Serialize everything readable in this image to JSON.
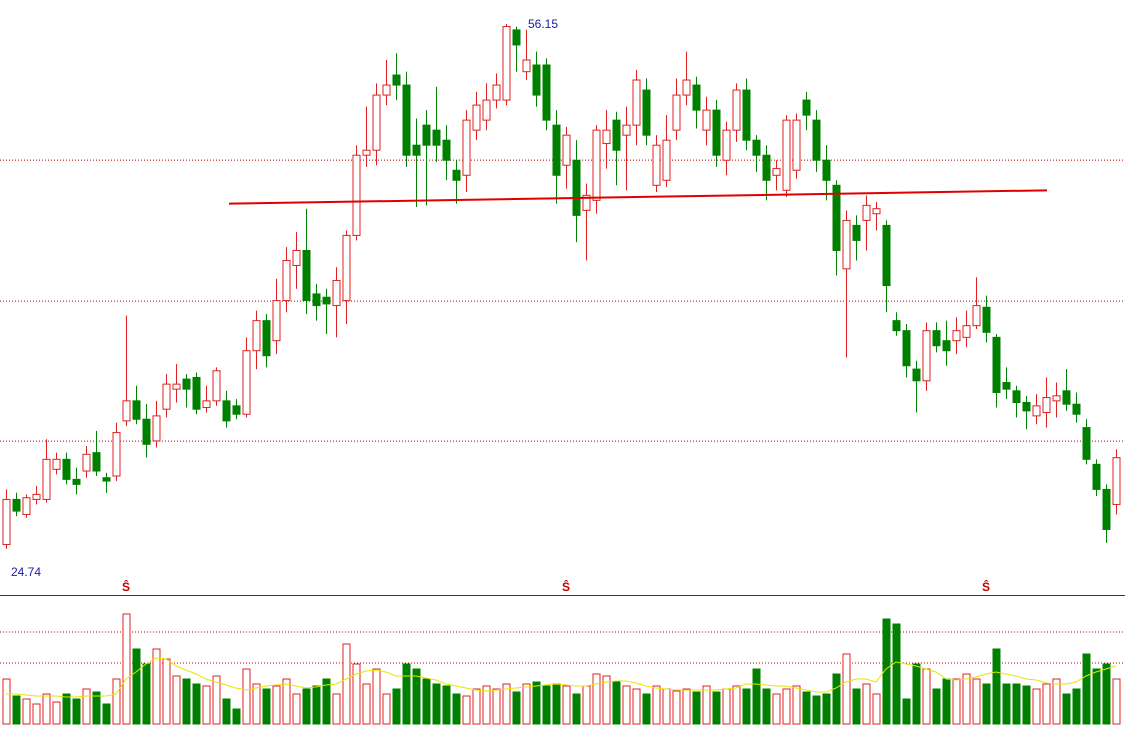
{
  "chart_data": {
    "type": "candlestick",
    "up_color": "#e02020",
    "down_color": "#008000",
    "ma_color": "#e6e600",
    "grid_color": "#c00000",
    "ylim": [
      21.98,
      57.59
    ],
    "vlim": [
      0,
      128
    ],
    "grid_lines": [
      48.01,
      39.57,
      31.19
    ],
    "volume_grid_lines": [
      92,
      61
    ],
    "open": [
      25.0,
      27.7,
      26.8,
      27.7,
      27.7,
      29.5,
      30.1,
      28.9,
      29.4,
      30.5,
      29.0,
      29.1,
      32.4,
      33.6,
      32.5,
      31.2,
      33.1,
      34.3,
      34.9,
      35.0,
      33.2,
      33.6,
      33.6,
      33.3,
      32.8,
      36.6,
      38.4,
      37.2,
      39.6,
      41.7,
      42.6,
      40.0,
      39.8,
      39.3,
      39.6,
      43.5,
      48.3,
      48.6,
      51.9,
      53.1,
      52.5,
      48.9,
      50.1,
      49.8,
      49.2,
      47.4,
      47.1,
      49.8,
      50.4,
      51.6,
      51.6,
      55.8,
      53.3,
      53.7,
      53.7,
      50.1,
      47.7,
      48.0,
      45.0,
      45.6,
      49.0,
      50.4,
      49.5,
      50.1,
      52.2,
      46.5,
      46.8,
      49.8,
      51.9,
      52.5,
      49.8,
      51.0,
      48.0,
      49.8,
      52.2,
      49.2,
      48.3,
      47.1,
      46.2,
      47.4,
      51.6,
      50.4,
      48.0,
      46.5,
      41.5,
      44.1,
      44.4,
      44.8,
      44.1,
      38.4,
      37.8,
      35.5,
      34.8,
      37.8,
      37.2,
      37.2,
      37.4,
      38.1,
      39.2,
      37.4,
      34.7,
      34.2,
      33.5,
      32.7,
      32.9,
      33.6,
      34.2,
      33.4,
      32.0,
      29.8,
      28.3,
      27.4
    ],
    "high": [
      28.3,
      28.1,
      28.0,
      28.5,
      31.3,
      30.5,
      30.5,
      29.6,
      30.9,
      31.8,
      29.3,
      32.3,
      38.7,
      34.5,
      33.4,
      33.6,
      35.2,
      35.8,
      35.2,
      35.3,
      34.5,
      35.6,
      34.2,
      33.7,
      37.4,
      39.0,
      38.8,
      40.9,
      42.8,
      43.7,
      45.1,
      40.6,
      40.3,
      41.6,
      43.8,
      48.9,
      51.2,
      52.6,
      54.0,
      54.4,
      53.3,
      50.5,
      51.0,
      52.4,
      50.1,
      48.0,
      51.0,
      52.1,
      52.6,
      53.2,
      56.15,
      56.0,
      55.8,
      54.5,
      54.1,
      51.0,
      50.0,
      49.2,
      46.6,
      50.1,
      51.0,
      50.9,
      51.2,
      53.4,
      52.9,
      49.5,
      50.7,
      52.9,
      54.5,
      53.0,
      51.8,
      51.6,
      50.3,
      52.6,
      52.9,
      49.5,
      48.9,
      48.0,
      50.7,
      50.8,
      52.1,
      51.0,
      48.9,
      46.8,
      45.0,
      44.7,
      45.9,
      45.5,
      44.4,
      38.9,
      38.2,
      36.0,
      38.3,
      38.3,
      38.4,
      38.6,
      39.0,
      41.0,
      39.9,
      37.6,
      35.6,
      34.5,
      33.9,
      34.0,
      35.0,
      34.7,
      35.5,
      34.1,
      32.5,
      30.1,
      28.6,
      30.7
    ],
    "low": [
      24.74,
      26.7,
      26.6,
      27.4,
      27.5,
      29.2,
      28.6,
      28.0,
      29.0,
      29.1,
      28.1,
      28.8,
      32.1,
      32.2,
      30.2,
      30.8,
      32.6,
      33.5,
      33.2,
      32.8,
      32.9,
      33.3,
      32.0,
      32.5,
      32.6,
      35.5,
      35.6,
      36.4,
      38.9,
      40.3,
      38.8,
      38.4,
      37.6,
      37.4,
      38.2,
      43.2,
      47.6,
      47.7,
      51.3,
      51.6,
      47.6,
      45.2,
      45.3,
      47.9,
      46.8,
      45.4,
      46.1,
      49.2,
      49.8,
      51.1,
      51.3,
      53.3,
      52.8,
      51.2,
      49.8,
      45.4,
      46.3,
      43.1,
      42.0,
      44.8,
      47.5,
      46.5,
      46.2,
      48.9,
      48.9,
      46.1,
      46.4,
      49.2,
      51.3,
      49.9,
      48.9,
      47.6,
      47.1,
      49.1,
      48.6,
      47.3,
      45.6,
      46.2,
      45.8,
      46.9,
      49.8,
      47.3,
      45.6,
      41.1,
      36.2,
      42.0,
      42.6,
      43.8,
      38.9,
      37.5,
      35.0,
      32.9,
      34.2,
      36.5,
      35.7,
      36.4,
      36.8,
      37.9,
      37.1,
      33.2,
      33.7,
      32.6,
      31.9,
      32.2,
      32.0,
      32.6,
      33.0,
      32.3,
      29.8,
      27.9,
      25.1,
      26.8
    ],
    "close": [
      27.7,
      27.0,
      27.8,
      28.0,
      30.1,
      30.1,
      28.9,
      28.6,
      30.4,
      29.4,
      28.8,
      31.7,
      33.6,
      32.5,
      31.0,
      32.7,
      34.6,
      34.6,
      34.3,
      33.1,
      33.6,
      35.4,
      32.4,
      32.8,
      36.6,
      38.4,
      36.3,
      39.6,
      42.0,
      42.6,
      39.6,
      39.3,
      39.4,
      40.8,
      43.5,
      48.3,
      48.6,
      51.9,
      52.5,
      52.5,
      48.3,
      48.3,
      48.9,
      48.9,
      48.0,
      46.8,
      50.4,
      51.3,
      51.6,
      52.5,
      56.0,
      54.9,
      54.0,
      51.9,
      50.4,
      47.1,
      49.5,
      44.7,
      45.9,
      49.8,
      49.8,
      48.6,
      50.1,
      52.8,
      49.5,
      48.9,
      49.2,
      51.9,
      52.8,
      51.0,
      51.0,
      48.3,
      49.8,
      52.2,
      49.2,
      48.3,
      46.8,
      47.5,
      50.4,
      50.4,
      50.7,
      48.0,
      46.8,
      42.6,
      44.4,
      43.2,
      45.3,
      45.1,
      40.5,
      37.8,
      35.7,
      34.8,
      37.8,
      36.9,
      36.6,
      37.8,
      38.1,
      39.3,
      37.7,
      34.1,
      34.3,
      33.5,
      33.0,
      33.3,
      33.8,
      33.9,
      33.4,
      32.8,
      30.1,
      28.3,
      25.9,
      30.2
    ],
    "volume": [
      45,
      28,
      25,
      20,
      30,
      22,
      30,
      25,
      35,
      32,
      20,
      45,
      110,
      75,
      60,
      75,
      65,
      48,
      45,
      40,
      38,
      48,
      25,
      15,
      55,
      40,
      35,
      38,
      45,
      30,
      35,
      38,
      45,
      30,
      80,
      60,
      40,
      55,
      30,
      35,
      60,
      55,
      45,
      40,
      38,
      30,
      28,
      35,
      38,
      35,
      40,
      32,
      40,
      42,
      38,
      40,
      38,
      30,
      38,
      50,
      48,
      42,
      38,
      35,
      30,
      38,
      35,
      33,
      35,
      32,
      38,
      32,
      35,
      38,
      35,
      55,
      35,
      30,
      35,
      38,
      32,
      28,
      30,
      50,
      70,
      35,
      40,
      30,
      105,
      100,
      25,
      60,
      55,
      35,
      45,
      45,
      50,
      45,
      40,
      75,
      40,
      40,
      38,
      35,
      40,
      45,
      30,
      35,
      70,
      55,
      60,
      45
    ],
    "volume_ma": [
      30,
      30,
      29,
      28,
      28,
      28,
      27,
      27,
      28,
      28,
      28,
      30,
      45,
      52,
      60,
      66,
      65,
      58,
      54,
      50,
      45,
      42,
      39,
      36,
      34,
      36,
      38,
      39,
      40,
      38,
      36,
      37,
      39,
      40,
      45,
      50,
      53,
      54,
      52,
      48,
      48,
      48,
      46,
      44,
      40,
      38,
      36,
      34,
      33,
      34,
      35,
      36,
      37,
      38,
      39,
      40,
      39,
      38,
      38,
      40,
      42,
      43,
      43,
      41,
      38,
      36,
      35,
      34,
      34,
      34,
      34,
      34,
      35,
      36,
      40,
      40,
      39,
      38,
      38,
      36,
      34,
      32,
      32,
      36,
      42,
      45,
      45,
      42,
      55,
      62,
      60,
      58,
      55,
      52,
      45,
      44,
      45,
      47,
      50,
      52,
      50,
      48,
      45,
      44,
      41,
      40,
      40,
      42,
      48,
      52,
      55,
      58
    ],
    "trendline": {
      "x": [
        22.3,
        104.1
      ],
      "y": [
        45.4,
        46.2
      ],
      "color": "#e00000"
    },
    "markers": [
      {
        "index": 12,
        "label": "Ŝ"
      },
      {
        "index": 56,
        "label": "Ŝ"
      },
      {
        "index": 98,
        "label": "Ŝ"
      }
    ]
  }
}
